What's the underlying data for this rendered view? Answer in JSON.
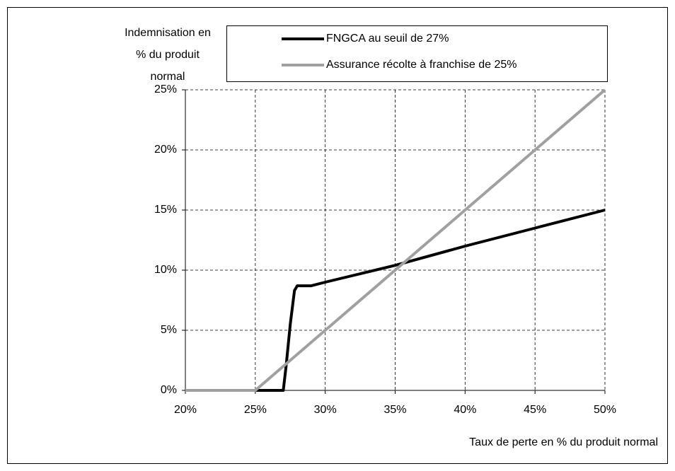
{
  "chart_data": {
    "type": "line",
    "ylabel": [
      "Indemnisation en",
      "% du produit",
      "normal"
    ],
    "xlabel": "Taux de perte en % du produit normal",
    "x": [
      20,
      25,
      26,
      27,
      27.2,
      27.5,
      27.8,
      28,
      29,
      30,
      35,
      40,
      45,
      50
    ],
    "series": [
      {
        "name": "FNGCA au seuil de 27%",
        "color": "#000000",
        "values": [
          0,
          0,
          0,
          0,
          2,
          5.5,
          8.3,
          8.7,
          8.7,
          9,
          10.4,
          12,
          13.5,
          15
        ]
      },
      {
        "name": "Assurance récolte à franchise de 25%",
        "color": "#a0a0a0",
        "values": [
          0,
          0,
          1,
          2,
          2.2,
          2.5,
          2.8,
          3,
          4,
          5,
          10,
          15,
          20,
          25
        ]
      }
    ],
    "xlim": [
      20,
      50
    ],
    "xticks": [
      {
        "value": 20,
        "label": "20%"
      },
      {
        "value": 25,
        "label": "25%"
      },
      {
        "value": 30,
        "label": "30%"
      },
      {
        "value": 35,
        "label": "35%"
      },
      {
        "value": 40,
        "label": "40%"
      },
      {
        "value": 45,
        "label": "45%"
      },
      {
        "value": 50,
        "label": "50%"
      }
    ],
    "ylim": [
      0,
      25
    ],
    "yticks": [
      {
        "value": 0,
        "label": "0%"
      },
      {
        "value": 5,
        "label": "5%"
      },
      {
        "value": 10,
        "label": "10%"
      },
      {
        "value": 15,
        "label": "15%"
      },
      {
        "value": 20,
        "label": "20%"
      },
      {
        "value": 25,
        "label": "25%"
      }
    ],
    "grid": true
  }
}
